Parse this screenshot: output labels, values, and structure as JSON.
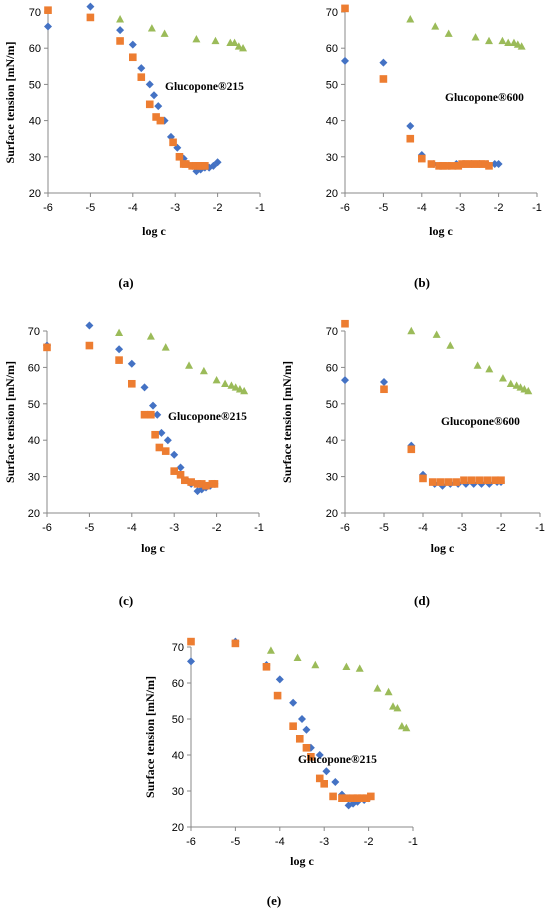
{
  "colors": {
    "diamond": "#4472C4",
    "square": "#ED7D31",
    "triangle": "#9BBB59"
  },
  "chart_data": [
    {
      "id": "a",
      "caption": "(a)",
      "type": "scatter",
      "xlabel": "log c",
      "ylabel": "Surface tension [mN/m]",
      "xlim": [
        -6,
        -1
      ],
      "ylim": [
        20,
        70
      ],
      "xticks": [
        "-6",
        "-5",
        "-4",
        "-3",
        "-2",
        "-1"
      ],
      "yticks": [
        "20",
        "30",
        "40",
        "50",
        "60",
        "70"
      ],
      "annotation": "Glucopone®215",
      "series": [
        {
          "marker": "diamond",
          "color": "#4472C4",
          "x": [
            -6,
            -5,
            -4.3,
            -4.0,
            -3.8,
            -3.6,
            -3.5,
            -3.4,
            -3.25,
            -3.1,
            -2.95,
            -2.8,
            -2.7,
            -2.6,
            -2.5,
            -2.4,
            -2.3,
            -2.2,
            -2.1,
            -2.0
          ],
          "y": [
            66,
            71.5,
            65,
            61,
            54.5,
            50,
            47,
            44,
            40,
            35.5,
            32.5,
            29.5,
            28,
            27.5,
            26,
            26.5,
            27,
            27,
            27.5,
            28.5
          ]
        },
        {
          "marker": "square",
          "color": "#ED7D31",
          "x": [
            -6,
            -5,
            -4.3,
            -4.0,
            -3.8,
            -3.6,
            -3.45,
            -3.35,
            -3.05,
            -2.9,
            -2.8,
            -2.75,
            -2.6,
            -2.5,
            -2.45,
            -2.4,
            -2.35,
            -2.3
          ],
          "y": [
            70.5,
            68.5,
            62,
            57.5,
            52,
            44.5,
            41,
            40,
            34,
            30,
            28,
            28,
            27.5,
            27.5,
            27.5,
            27.5,
            27.5,
            27.5
          ]
        },
        {
          "marker": "triangle",
          "color": "#9BBB59",
          "x": [
            -4.3,
            -3.55,
            -3.25,
            -2.5,
            -2.05,
            -1.7,
            -1.6,
            -1.5,
            -1.4
          ],
          "y": [
            68,
            65.5,
            64,
            62.5,
            62,
            61.5,
            61.5,
            60.5,
            60
          ]
        }
      ]
    },
    {
      "id": "b",
      "caption": "(b)",
      "type": "scatter",
      "xlabel": "log c",
      "ylabel": "",
      "xlim": [
        -6,
        -1
      ],
      "ylim": [
        20,
        70
      ],
      "xticks": [
        "-6",
        "-5",
        "-4",
        "-3",
        "-2",
        "-1"
      ],
      "yticks": [
        "20",
        "30",
        "40",
        "50",
        "60",
        "70"
      ],
      "annotation": "Glucopone®600",
      "series": [
        {
          "marker": "diamond",
          "color": "#4472C4",
          "x": [
            -6,
            -5,
            -4.3,
            -4.0,
            -3.7,
            -3.5,
            -3.3,
            -3.1,
            -2.9,
            -2.7,
            -2.5,
            -2.3,
            -2.1,
            -2.0
          ],
          "y": [
            56.5,
            56,
            38.5,
            30.5,
            28,
            27.5,
            27.5,
            28,
            28,
            28,
            28,
            28,
            28,
            28
          ]
        },
        {
          "marker": "square",
          "color": "#ED7D31",
          "x": [
            -6,
            -5,
            -4.3,
            -4.0,
            -3.75,
            -3.55,
            -3.45,
            -3.35,
            -3.2,
            -3.05,
            -2.95,
            -2.85,
            -2.75,
            -2.65,
            -2.55,
            -2.45,
            -2.35,
            -2.25
          ],
          "y": [
            71,
            51.5,
            35,
            29.5,
            28,
            27.5,
            27.5,
            27.5,
            27.5,
            27.5,
            28,
            28,
            28,
            28,
            28,
            28,
            28,
            27.5
          ]
        },
        {
          "marker": "triangle",
          "color": "#9BBB59",
          "x": [
            -4.3,
            -3.65,
            -3.3,
            -2.6,
            -2.25,
            -1.9,
            -1.75,
            -1.6,
            -1.5,
            -1.4
          ],
          "y": [
            68,
            66,
            64,
            63,
            62,
            62,
            61.5,
            61.5,
            61,
            60.5
          ]
        }
      ]
    },
    {
      "id": "c",
      "caption": "(c)",
      "type": "scatter",
      "xlabel": "log c",
      "ylabel": "Surface tension [mN/m]",
      "xlim": [
        -6,
        -1
      ],
      "ylim": [
        20,
        70
      ],
      "xticks": [
        "-6",
        "-5",
        "-4",
        "-3",
        "-2",
        "-1"
      ],
      "yticks": [
        "20",
        "30",
        "40",
        "50",
        "60",
        "70"
      ],
      "annotation": "Glucopone®215",
      "series": [
        {
          "marker": "diamond",
          "color": "#4472C4",
          "x": [
            -6,
            -5,
            -4.3,
            -4.0,
            -3.7,
            -3.5,
            -3.4,
            -3.3,
            -3.15,
            -3.0,
            -2.85,
            -2.7,
            -2.6,
            -2.45,
            -2.35,
            -2.25,
            -2.15,
            -2.05
          ],
          "y": [
            66,
            71.5,
            65,
            61,
            54.5,
            49.5,
            47,
            42,
            40,
            36,
            32.5,
            29,
            28,
            26,
            26.5,
            27,
            27.5,
            28
          ]
        },
        {
          "marker": "square",
          "color": "#ED7D31",
          "x": [
            -6,
            -5,
            -4.3,
            -4.0,
            -3.7,
            -3.55,
            -3.45,
            -3.35,
            -3.2,
            -3.0,
            -2.85,
            -2.75,
            -2.6,
            -2.45,
            -2.35,
            -2.25,
            -2.1,
            -2.05
          ],
          "y": [
            65.5,
            66,
            62,
            55.5,
            47,
            47,
            41.5,
            38,
            37,
            31.5,
            30.5,
            29,
            28.5,
            28,
            28,
            27.5,
            28,
            28
          ]
        },
        {
          "marker": "triangle",
          "color": "#9BBB59",
          "x": [
            -4.3,
            -3.55,
            -3.2,
            -2.65,
            -2.3,
            -2.0,
            -1.8,
            -1.65,
            -1.55,
            -1.45,
            -1.35
          ],
          "y": [
            69.5,
            68.5,
            65.5,
            60.5,
            59,
            56.5,
            55.5,
            55,
            54.5,
            54,
            53.5
          ]
        }
      ]
    },
    {
      "id": "d",
      "caption": "(d)",
      "type": "scatter",
      "xlabel": "log c",
      "ylabel": "Surface tension [mN/m]",
      "xlim": [
        -6,
        -1
      ],
      "ylim": [
        20,
        70
      ],
      "xticks": [
        "-6",
        "-5",
        "-4",
        "-3",
        "-2",
        "-1"
      ],
      "yticks": [
        "20",
        "30",
        "40",
        "50",
        "60",
        "70"
      ],
      "annotation": "Glucopone®600",
      "series": [
        {
          "marker": "diamond",
          "color": "#4472C4",
          "x": [
            -6,
            -5,
            -4.3,
            -4.0,
            -3.7,
            -3.5,
            -3.3,
            -3.1,
            -2.9,
            -2.7,
            -2.5,
            -2.3,
            -2.1,
            -2.0
          ],
          "y": [
            56.5,
            56,
            38.5,
            30.5,
            28,
            27.5,
            28,
            28,
            28,
            28,
            28,
            28,
            28.5,
            28.5
          ]
        },
        {
          "marker": "square",
          "color": "#ED7D31",
          "x": [
            -6,
            -5,
            -4.3,
            -4.0,
            -3.75,
            -3.55,
            -3.35,
            -3.15,
            -2.95,
            -2.75,
            -2.55,
            -2.35,
            -2.15,
            -2.0
          ],
          "y": [
            72,
            54,
            37.5,
            29.5,
            28.5,
            28.5,
            28.5,
            28.5,
            29,
            29,
            29,
            29,
            29,
            29
          ]
        },
        {
          "marker": "triangle",
          "color": "#9BBB59",
          "x": [
            -4.3,
            -3.65,
            -3.3,
            -2.6,
            -2.3,
            -1.95,
            -1.75,
            -1.6,
            -1.5,
            -1.4,
            -1.3
          ],
          "y": [
            70,
            69,
            66,
            60.5,
            59.5,
            57,
            55.5,
            55,
            54.5,
            54,
            53.5
          ]
        }
      ]
    },
    {
      "id": "e",
      "caption": "(e)",
      "type": "scatter",
      "xlabel": "log c",
      "ylabel": "Surface tension [mN/m]",
      "xlim": [
        -6,
        -1
      ],
      "ylim": [
        20,
        70
      ],
      "xticks": [
        "-6",
        "-5",
        "-4",
        "-3",
        "-2",
        "-1"
      ],
      "yticks": [
        "20",
        "30",
        "40",
        "50",
        "60",
        "70"
      ],
      "annotation": "Glucopone®215",
      "series": [
        {
          "marker": "diamond",
          "color": "#4472C4",
          "x": [
            -6,
            -5,
            -4.3,
            -4.0,
            -3.7,
            -3.5,
            -3.4,
            -3.3,
            -3.1,
            -2.95,
            -2.75,
            -2.6,
            -2.45,
            -2.35,
            -2.25,
            -2.1,
            -2.0
          ],
          "y": [
            66,
            71.5,
            65,
            61,
            54.5,
            50,
            47,
            42,
            40,
            35.5,
            32.5,
            29,
            26,
            26.5,
            27,
            27.5,
            28
          ]
        },
        {
          "marker": "square",
          "color": "#ED7D31",
          "x": [
            -6,
            -5,
            -4.3,
            -4.05,
            -3.7,
            -3.55,
            -3.4,
            -3.3,
            -3.1,
            -3.0,
            -2.8,
            -2.6,
            -2.5,
            -2.35,
            -2.25,
            -2.15,
            -2.05,
            -1.95
          ],
          "y": [
            71.5,
            71,
            64.5,
            56.5,
            48,
            44.5,
            42,
            39.5,
            33.5,
            32,
            28.5,
            28,
            28,
            28,
            28,
            28,
            28,
            28.5
          ]
        },
        {
          "marker": "triangle",
          "color": "#9BBB59",
          "x": [
            -4.2,
            -3.6,
            -3.2,
            -2.5,
            -2.2,
            -1.8,
            -1.55,
            -1.45,
            -1.35,
            -1.25,
            -1.15
          ],
          "y": [
            69,
            67,
            65,
            64.5,
            64,
            58.5,
            57.5,
            53.5,
            53,
            48,
            47.5
          ]
        }
      ]
    }
  ]
}
